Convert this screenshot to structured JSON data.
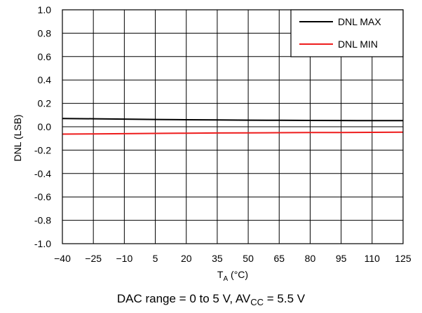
{
  "chart_data": {
    "type": "line",
    "x": [
      -40,
      -25,
      -10,
      5,
      20,
      35,
      50,
      65,
      80,
      95,
      110,
      125
    ],
    "x_tick_labels": [
      "−40",
      "−25",
      "−10",
      "5",
      "20",
      "35",
      "50",
      "65",
      "80",
      "95",
      "110",
      "125"
    ],
    "xlim": [
      -40,
      125
    ],
    "ylim": [
      -1.0,
      1.0
    ],
    "y_ticks": [
      -1.0,
      -0.8,
      -0.6,
      -0.4,
      -0.2,
      0.0,
      0.2,
      0.4,
      0.6,
      0.8,
      1.0
    ],
    "y_tick_labels": [
      "-1.0",
      "-0.8",
      "-0.6",
      "-0.4",
      "-0.2",
      "0.0",
      "0.2",
      "0.4",
      "0.6",
      "0.8",
      "1.0"
    ],
    "grid": true,
    "legend_position": "top-right",
    "xlabel": {
      "main": "T",
      "sub": "A",
      "rest": " (°C)"
    },
    "ylabel": "DNL (LSB)",
    "caption": {
      "main": "DAC range = 0 to 5 V, AV",
      "sub": "CC",
      "rest": " = 5.5 V"
    },
    "series": [
      {
        "name": "DNL MAX",
        "color": "#000000",
        "values": [
          0.07,
          0.068,
          0.065,
          0.062,
          0.06,
          0.058,
          0.056,
          0.055,
          0.054,
          0.053,
          0.052,
          0.052
        ]
      },
      {
        "name": "DNL MIN",
        "color": "#ee1c1c",
        "values": [
          -0.063,
          -0.061,
          -0.059,
          -0.057,
          -0.055,
          -0.053,
          -0.052,
          -0.051,
          -0.05,
          -0.049,
          -0.048,
          -0.047
        ]
      }
    ]
  }
}
